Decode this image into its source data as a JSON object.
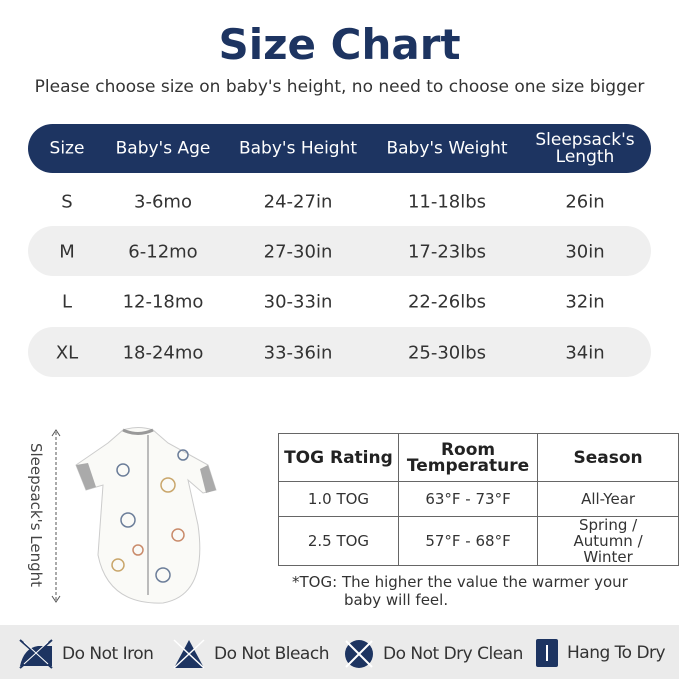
{
  "title": "Size Chart",
  "subtitle": "Please choose size on baby's height, no need to choose one size bigger",
  "size_table": {
    "headers": [
      "Size",
      "Baby's Age",
      "Baby's Height",
      "Baby's Weight",
      "Sleepsack's Length"
    ],
    "rows": [
      [
        "S",
        "3-6mo",
        "24-27in",
        "11-18lbs",
        "26in"
      ],
      [
        "M",
        "6-12mo",
        "27-30in",
        "17-23lbs",
        "30in"
      ],
      [
        "L",
        "12-18mo",
        "30-33in",
        "22-26lbs",
        "32in"
      ],
      [
        "XL",
        "18-24mo",
        "33-36in",
        "25-30lbs",
        "34in"
      ]
    ]
  },
  "length_label": "Sleepsack's Lenght",
  "tog_table": {
    "headers": [
      "TOG Rating",
      "Room Temperature",
      "Season"
    ],
    "rows": [
      [
        "1.0 TOG",
        "63°F - 73°F",
        "All-Year"
      ],
      [
        "2.5 TOG",
        "57°F - 68°F",
        "Spring / Autumn / Winter"
      ]
    ]
  },
  "note": {
    "prefix": "*TOG:",
    "text": "The higher the value the warmer your",
    "text2": "baby will feel."
  },
  "care": [
    {
      "icon": "do-not-iron-icon",
      "label": "Do Not Iron"
    },
    {
      "icon": "do-not-bleach-icon",
      "label": "Do Not Bleach"
    },
    {
      "icon": "do-not-dry-clean-icon",
      "label": "Do Not Dry Clean"
    },
    {
      "icon": "hang-to-dry-icon",
      "label": "Hang To Dry"
    }
  ],
  "colors": {
    "navy": "#1d3461",
    "band": "#efefef"
  }
}
